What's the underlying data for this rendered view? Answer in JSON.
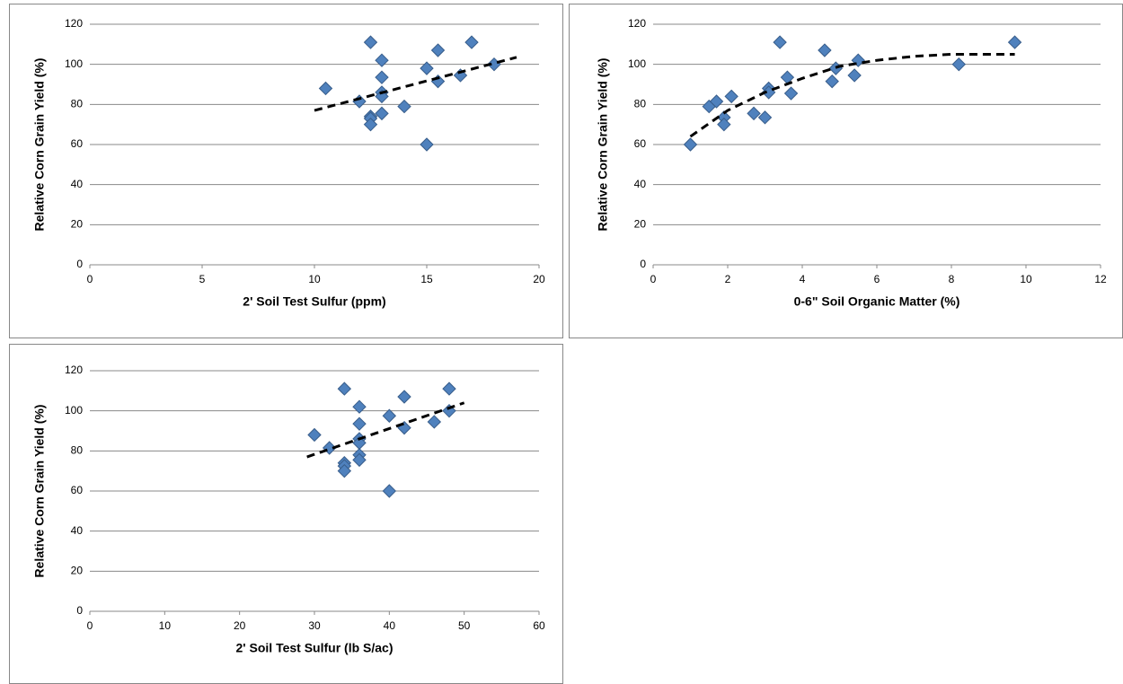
{
  "chart_data": [
    {
      "type": "scatter",
      "x_label": "2' Soil Test Sulfur (ppm)",
      "y_label": "Relative Corn Grain Yield (%)",
      "xlim": [
        0,
        20
      ],
      "xticks": [
        0,
        5,
        10,
        15,
        20
      ],
      "ylim": [
        0,
        120
      ],
      "yticks": [
        0,
        20,
        40,
        60,
        80,
        100,
        120
      ],
      "grid": true,
      "series": [
        {
          "color": "#4f81bd",
          "x": [
            10.5,
            12,
            12.5,
            12.5,
            12.5,
            12.5,
            13,
            13,
            13,
            13,
            13,
            14,
            15,
            15,
            15.5,
            15.5,
            16.5,
            17,
            18
          ],
          "values": [
            88,
            81.5,
            111,
            74,
            73,
            70,
            102,
            93.5,
            86,
            84,
            75.5,
            79,
            98,
            60,
            107,
            91.5,
            94.5,
            111,
            100
          ]
        }
      ],
      "trendline": {
        "color": "#000000",
        "x": [
          10,
          19
        ],
        "values": [
          77,
          103.5
        ]
      }
    },
    {
      "type": "scatter",
      "x_label": "0-6\" Soil Organic Matter (%)",
      "y_label": "Relative Corn Grain Yield (%)",
      "xlim": [
        0,
        12
      ],
      "xticks": [
        0,
        2,
        4,
        6,
        8,
        10,
        12
      ],
      "ylim": [
        0,
        120
      ],
      "yticks": [
        0,
        20,
        40,
        60,
        80,
        100,
        120
      ],
      "grid": true,
      "series": [
        {
          "color": "#4f81bd",
          "x": [
            1,
            1.5,
            1.7,
            1.9,
            1.9,
            2.1,
            2.7,
            3,
            3.1,
            3.1,
            3.4,
            3.6,
            3.7,
            4.6,
            4.8,
            4.9,
            5.4,
            5.5,
            8.2,
            9.7
          ],
          "values": [
            60,
            79,
            81.5,
            73.5,
            70,
            84,
            75.5,
            73.5,
            88,
            86,
            111,
            93.5,
            85.5,
            107,
            91.5,
            98,
            94.5,
            102,
            100,
            111
          ]
        }
      ],
      "trendline": {
        "color": "#000000",
        "x": [
          1,
          2,
          3,
          4,
          5,
          6,
          7,
          8,
          9.7
        ],
        "values": [
          64,
          77,
          86,
          93,
          99,
          102,
          104,
          105,
          105
        ]
      }
    },
    {
      "type": "scatter",
      "x_label": "2' Soil Test Sulfur (lb S/ac)",
      "y_label": "Relative Corn Grain Yield (%)",
      "xlim": [
        0,
        60
      ],
      "xticks": [
        0,
        10,
        20,
        30,
        40,
        50,
        60
      ],
      "ylim": [
        0,
        120
      ],
      "yticks": [
        0,
        20,
        40,
        60,
        80,
        100,
        120
      ],
      "grid": true,
      "series": [
        {
          "color": "#4f81bd",
          "x": [
            30,
            32,
            34,
            34,
            34,
            34,
            36,
            36,
            36,
            36,
            36,
            36,
            40,
            40,
            42,
            42,
            46,
            48,
            48
          ],
          "values": [
            88,
            81.5,
            111,
            74,
            72.5,
            70,
            102,
            93.5,
            86,
            84,
            78,
            75.5,
            97.5,
            60,
            107,
            91.5,
            94.5,
            111,
            100
          ]
        }
      ],
      "trendline": {
        "color": "#000000",
        "x": [
          29,
          50
        ],
        "values": [
          77,
          104
        ]
      }
    }
  ]
}
